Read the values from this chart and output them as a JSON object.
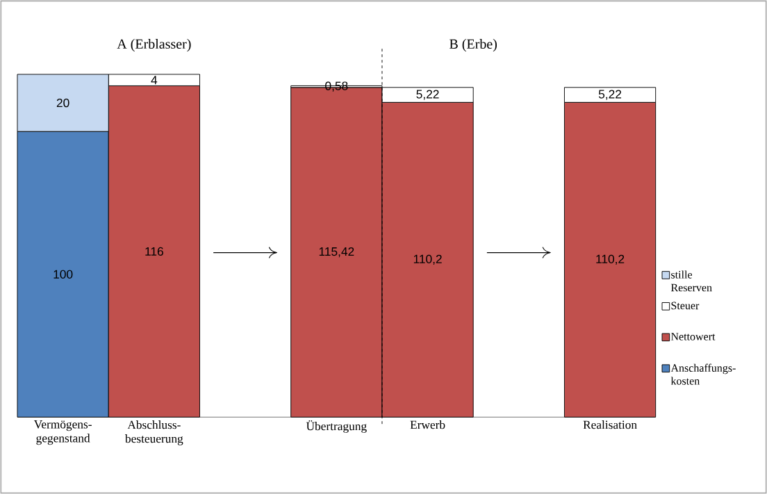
{
  "chart_data": {
    "type": "bar",
    "stacked": true,
    "categories": [
      "Vermögens-gegenstand",
      "Abschluss-besteuerung",
      null,
      "Übertragung",
      "Erwerb",
      null,
      "Realisation"
    ],
    "series": [
      {
        "name": "Anschaffungs-kosten",
        "color": "#4f81bd",
        "values": [
          100,
          null,
          null,
          null,
          null,
          null,
          null
        ],
        "value_labels": [
          "100",
          null,
          null,
          null,
          null,
          null,
          null
        ]
      },
      {
        "name": "Nettowert",
        "color": "#c0504d",
        "values": [
          null,
          116,
          null,
          115.42,
          110.2,
          null,
          110.2
        ],
        "value_labels": [
          null,
          "116",
          null,
          "115,42",
          "110,2",
          null,
          "110,2"
        ]
      },
      {
        "name": "Steuer",
        "color": "#ffffff",
        "values": [
          null,
          4,
          null,
          0.58,
          5.22,
          null,
          5.22
        ],
        "value_labels": [
          null,
          "4",
          null,
          "0,58",
          "5,22",
          null,
          "5,22"
        ]
      },
      {
        "name": "stille Reserven",
        "color": "#c6d9f1",
        "values": [
          20,
          null,
          null,
          null,
          null,
          null,
          null
        ],
        "value_labels": [
          "20",
          null,
          null,
          null,
          null,
          null,
          null
        ]
      }
    ],
    "annotations": [
      "A (Erblasser)",
      "B (Erbe)"
    ],
    "legend": "right"
  }
}
